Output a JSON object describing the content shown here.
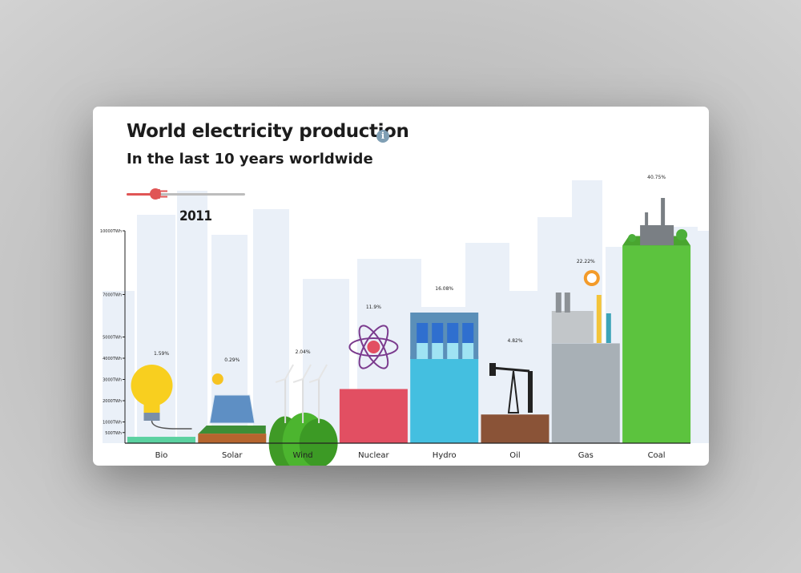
{
  "header": {
    "title": "World electricity production",
    "subtitle": "In the last 10 years worldwide",
    "info_icon": "info-icon"
  },
  "timeline": {
    "year": "2011",
    "progress": 0.2
  },
  "colors": {
    "bio": "#5bd1a0",
    "solar": "#b5652e",
    "wind": "#45a52b",
    "nuclear": "#e24f62",
    "hydro": "#44bfe0",
    "oil": "#8a5337",
    "gas": "#a8b0b6",
    "coal": "#5cc33e",
    "axis": "#222222"
  },
  "chart_data": {
    "type": "bar",
    "categories": [
      "Bio",
      "Solar",
      "Wind",
      "Nuclear",
      "Hydro",
      "Oil",
      "Gas",
      "Coal"
    ],
    "percent_labels": [
      "1.59%",
      "0.29%",
      "2.04%",
      "11.9%",
      "16.08%",
      "4.82%",
      "22.22%",
      "40.75%"
    ],
    "values": [
      300,
      450,
      1150,
      2550,
      4100,
      1350,
      4700,
      9300
    ],
    "y_ticks": [
      500,
      1000,
      2000,
      3000,
      4000,
      5000,
      7000,
      10000
    ],
    "y_tick_labels": [
      "500TWh",
      "1000TWh",
      "2000TWh",
      "3000TWh",
      "4000TWh",
      "5000TWh",
      "7000TWh",
      "10000TWh"
    ],
    "ylim": [
      0,
      10000
    ],
    "grid": false,
    "legend": "none"
  }
}
